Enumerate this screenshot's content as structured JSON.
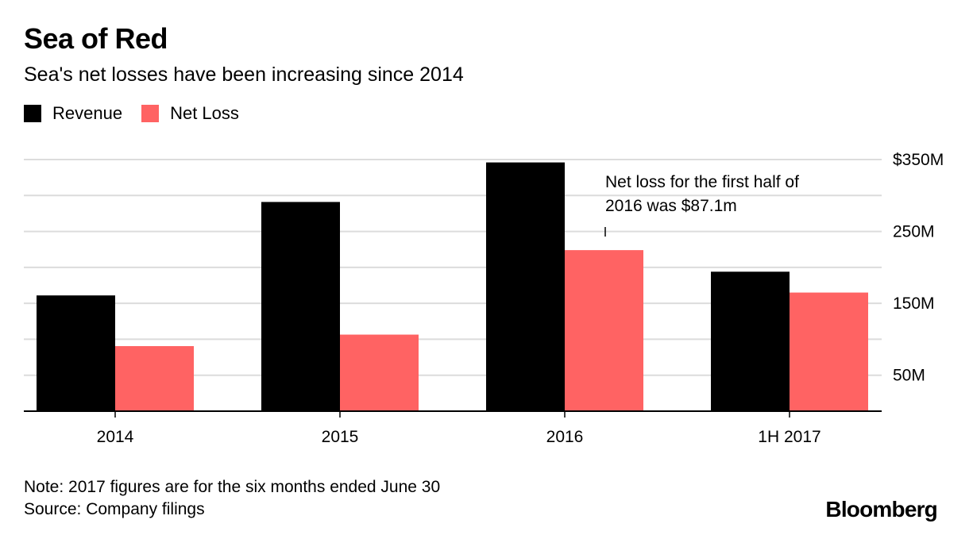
{
  "header": {
    "title": "Sea of Red",
    "subtitle": "Sea's net losses have been increasing since 2014"
  },
  "legend": {
    "items": [
      {
        "label": "Revenue",
        "color": "#000000"
      },
      {
        "label": "Net Loss",
        "color": "#ff6363"
      }
    ]
  },
  "chart_data": {
    "type": "bar",
    "categories": [
      "2014",
      "2015",
      "2016",
      "1H 2017"
    ],
    "series": [
      {
        "name": "Revenue",
        "color": "#000000",
        "values": [
          161,
          291,
          346,
          194
        ]
      },
      {
        "name": "Net Loss",
        "color": "#ff6363",
        "values": [
          90.5,
          106.5,
          224,
          165
        ]
      }
    ],
    "ylim": [
      0,
      350
    ],
    "y_ticks": [
      50,
      150,
      250,
      350
    ],
    "y_tick_labels": [
      "50M",
      "150M",
      "250M",
      "$350M"
    ],
    "grid": true,
    "y_axis_side": "right",
    "legend_position": "top-left",
    "annotation": {
      "lines": [
        "Net loss for the first half of",
        "2016 was $87.1m"
      ],
      "category": "2016"
    }
  },
  "footer": {
    "note": "Note: 2017 figures are for the six months ended June 30",
    "source": "Source: Company filings",
    "brand": "Bloomberg"
  }
}
